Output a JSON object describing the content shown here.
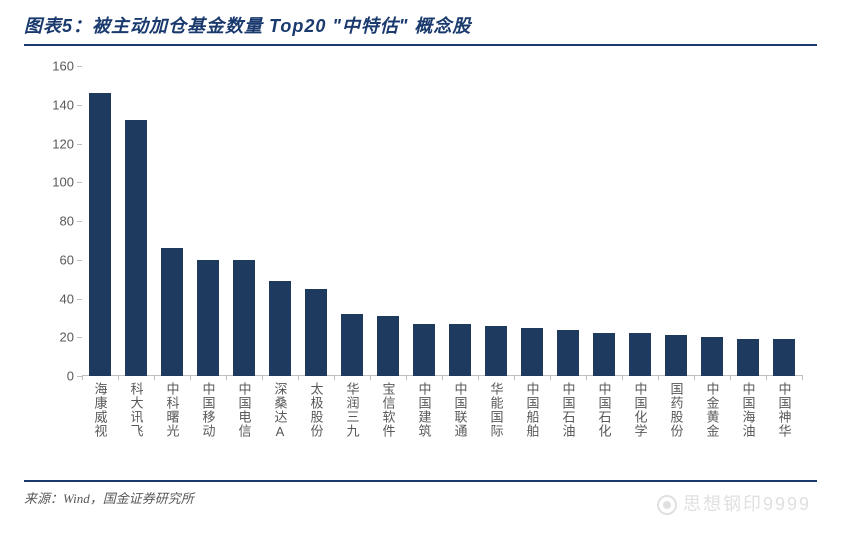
{
  "title": "图表5：被主动加仓基金数量 Top20 \"中特估\" 概念股",
  "source": "来源：Wind，国金证券研究所",
  "watermark": "思想钢印9999",
  "chart": {
    "type": "bar",
    "ylim": [
      0,
      160
    ],
    "ytick_step": 20,
    "yticks": [
      0,
      20,
      40,
      60,
      80,
      100,
      120,
      140,
      160
    ],
    "bar_color": "#1f3a5f",
    "axis_color": "#bfbfbf",
    "label_color": "#595959",
    "label_fontsize": 13,
    "title_color": "#1a3a6e",
    "title_fontsize": 18,
    "background_color": "#ffffff",
    "bar_width": 0.62,
    "categories": [
      "海康威视",
      "科大讯飞",
      "中科曙光",
      "中国移动",
      "中国电信",
      "深桑达A",
      "太极股份",
      "华润三九",
      "宝信软件",
      "中国建筑",
      "中国联通",
      "华能国际",
      "中国船舶",
      "中国石油",
      "中国石化",
      "中国化学",
      "国药股份",
      "中金黄金",
      "中国海油",
      "中国神华"
    ],
    "values": [
      146,
      132,
      66,
      60,
      60,
      49,
      45,
      32,
      31,
      27,
      27,
      26,
      25,
      24,
      22,
      22,
      21,
      20,
      19,
      19
    ]
  }
}
